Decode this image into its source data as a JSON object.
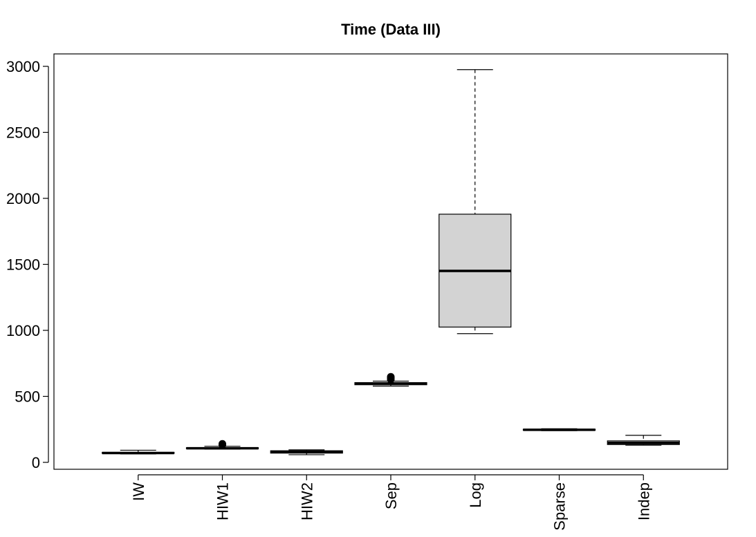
{
  "chart_data": {
    "type": "boxplot",
    "title": "Time (Data III)",
    "xlabel": "",
    "ylabel": "",
    "ylim": [
      -50,
      3100
    ],
    "y_ticks": [
      0,
      500,
      1000,
      1500,
      2000,
      2500,
      3000
    ],
    "grid": false,
    "categories": [
      "IW",
      "HIW1",
      "HIW2",
      "Sep",
      "Log",
      "Sparse",
      "Indep"
    ],
    "boxes": [
      {
        "name": "IW",
        "min": 64,
        "q1": 68,
        "median": 71,
        "q3": 76,
        "max": 92,
        "outliers": []
      },
      {
        "name": "HIW1",
        "min": 100,
        "q1": 103,
        "median": 107,
        "q3": 111,
        "max": 122,
        "outliers": [
          132,
          140
        ]
      },
      {
        "name": "HIW2",
        "min": 58,
        "q1": 70,
        "median": 80,
        "q3": 88,
        "max": 95,
        "outliers": []
      },
      {
        "name": "Sep",
        "min": 578,
        "q1": 588,
        "median": 597,
        "q3": 604,
        "max": 615,
        "outliers": [
          628,
          640,
          648
        ]
      },
      {
        "name": "Log",
        "min": 975,
        "q1": 1025,
        "median": 1450,
        "q3": 1880,
        "max": 2975,
        "outliers": []
      },
      {
        "name": "Sparse",
        "min": 240,
        "q1": 243,
        "median": 247,
        "q3": 251,
        "max": 255,
        "outliers": []
      },
      {
        "name": "Indep",
        "min": 130,
        "q1": 135,
        "median": 148,
        "q3": 163,
        "max": 205,
        "outliers": []
      }
    ]
  }
}
